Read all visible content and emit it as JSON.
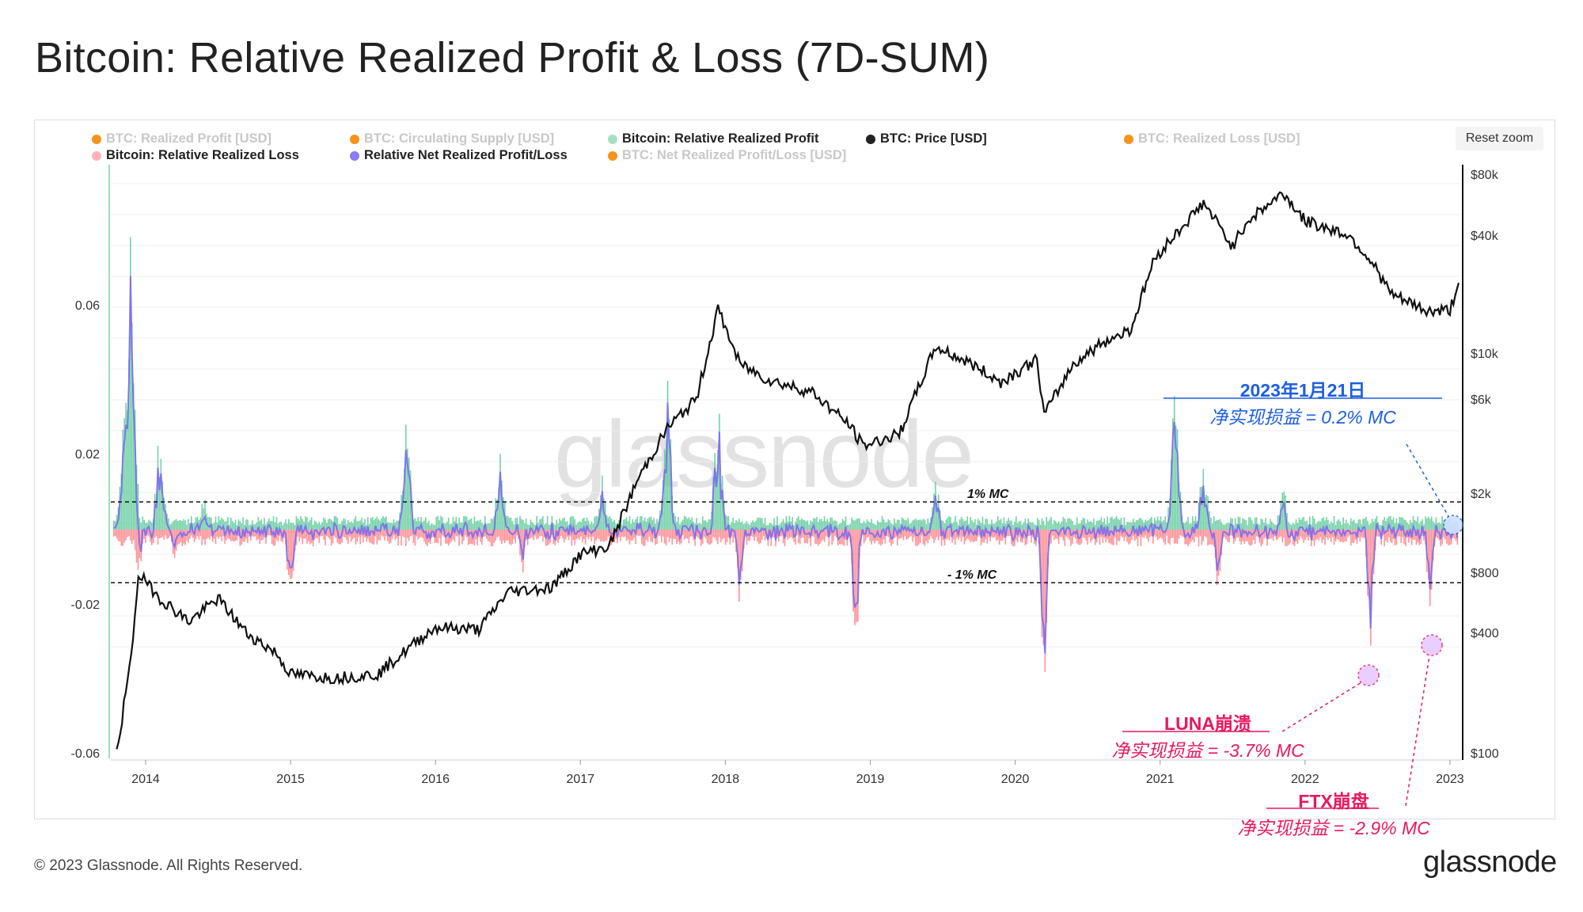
{
  "title": "Bitcoin: Relative Realized Profit & Loss (7D-SUM)",
  "legend": [
    {
      "label": "BTC: Realized Profit [USD]",
      "color": "#f7931a",
      "active": false
    },
    {
      "label": "BTC: Circulating Supply [USD]",
      "color": "#f7931a",
      "active": false
    },
    {
      "label": "Bitcoin: Relative Realized Profit",
      "color": "#a7e0c0",
      "active": true
    },
    {
      "label": "BTC: Price [USD]",
      "color": "#222222",
      "active": true
    },
    {
      "label": "BTC: Realized Loss [USD]",
      "color": "#f7931a",
      "active": false
    },
    {
      "label": "Bitcoin: Relative Realized Loss",
      "color": "#ffb3b8",
      "active": true
    },
    {
      "label": "Relative Net Realized Profit/Loss",
      "color": "#8b7cf0",
      "active": true
    },
    {
      "label": "BTC: Net Realized Profit/Loss [USD]",
      "color": "#f7931a",
      "active": false
    }
  ],
  "reset_zoom_label": "Reset zoom",
  "watermark": "glassnode",
  "footer": {
    "copyright": "© 2023 Glassnode. All Rights Reserved.",
    "logo": "glassnode"
  },
  "colors": {
    "profit": "#5cc998",
    "loss": "#ff7f86",
    "net": "#7b6cf0",
    "price": "#111111",
    "blue_annot": "#1e5fe0",
    "pink_annot": "#e8185d"
  },
  "annotations": {
    "jan2023": {
      "head": "2023年1月21日",
      "sub": "净实现损益 = 0.2% MC"
    },
    "luna": {
      "head": "LUNA崩溃",
      "sub": "净实现损益 = -3.7% MC"
    },
    "ftx": {
      "head": "FTX崩盘",
      "sub": "净实现损益 = -2.9% MC"
    }
  },
  "chart_data": {
    "type": "area",
    "x_ticks": [
      "2014",
      "2015",
      "2016",
      "2017",
      "2018",
      "2019",
      "2020",
      "2021",
      "2022",
      "2023"
    ],
    "left_ticks": [
      "0.06",
      "0.02",
      "-0.02",
      "-0.06"
    ],
    "left_ylim": [
      -0.06,
      0.06
    ],
    "right_ticks": [
      "$80k",
      "$40k",
      "$10k",
      "$6k",
      "$2k",
      "$800",
      "$400",
      "$100"
    ],
    "right_scale": "log",
    "reference_lines": [
      {
        "label": "1% MC",
        "value": 0.01
      },
      {
        "label": "- 1% MC",
        "value": -0.01
      }
    ],
    "price_series": {
      "name": "BTC: Price [USD]",
      "x": [
        2013.8,
        2013.9,
        2013.95,
        2014.1,
        2014.3,
        2014.5,
        2014.7,
        2014.9,
        2015.0,
        2015.3,
        2015.6,
        2015.9,
        2016.0,
        2016.3,
        2016.5,
        2016.8,
        2017.0,
        2017.2,
        2017.4,
        2017.6,
        2017.8,
        2017.95,
        2018.1,
        2018.3,
        2018.6,
        2018.85,
        2018.95,
        2019.2,
        2019.45,
        2019.7,
        2019.9,
        2020.15,
        2020.2,
        2020.4,
        2020.6,
        2020.8,
        2020.95,
        2021.0,
        2021.3,
        2021.5,
        2021.6,
        2021.85,
        2022.0,
        2022.3,
        2022.45,
        2022.6,
        2022.85,
        2023.0,
        2023.06
      ],
      "y": [
        100,
        300,
        800,
        600,
        460,
        600,
        400,
        320,
        250,
        240,
        250,
        380,
        430,
        420,
        650,
        680,
        1000,
        1100,
        2400,
        4300,
        6000,
        17000,
        9000,
        7500,
        6500,
        4500,
        3500,
        4000,
        11000,
        9000,
        7300,
        9500,
        5000,
        9000,
        11500,
        13500,
        29000,
        33000,
        58000,
        35000,
        47000,
        65000,
        47000,
        40000,
        30000,
        20000,
        16500,
        16800,
        23000
      ]
    },
    "net_series_highlights": [
      {
        "label": "2023年1月21日",
        "x": 2023.06,
        "value": 0.002
      },
      {
        "label": "LUNA崩溃",
        "x": 2022.45,
        "value": -0.037
      },
      {
        "label": "FTX崩盘",
        "x": 2022.86,
        "value": -0.029
      }
    ],
    "profit_peaks": {
      "x": [
        2013.85,
        2013.9,
        2014.1,
        2014.4,
        2015.8,
        2016.45,
        2017.15,
        2017.6,
        2017.95,
        2019.45,
        2021.1,
        2021.3,
        2021.85
      ],
      "y": [
        0.04,
        0.085,
        0.03,
        0.01,
        0.03,
        0.025,
        0.015,
        0.045,
        0.035,
        0.015,
        0.038,
        0.02,
        0.012
      ]
    },
    "loss_troughs": {
      "x": [
        2013.95,
        2014.2,
        2015.0,
        2016.6,
        2018.1,
        2018.9,
        2020.2,
        2021.4,
        2022.45,
        2022.86
      ],
      "y": [
        -0.015,
        -0.008,
        -0.026,
        -0.012,
        -0.02,
        -0.038,
        -0.043,
        -0.018,
        -0.037,
        -0.029
      ]
    }
  }
}
